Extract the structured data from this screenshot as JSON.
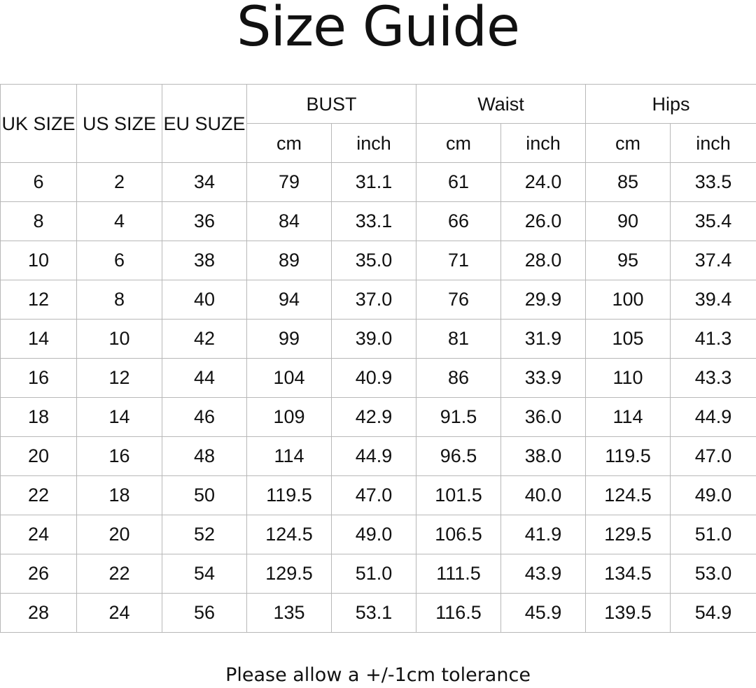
{
  "title": "Size Guide",
  "table": {
    "headers": {
      "uk": "UK SIZE",
      "us": "US SIZE",
      "eu": "EU SUZE",
      "bust": "BUST",
      "waist": "Waist",
      "hips": "Hips",
      "units": [
        "cm",
        "inch",
        "cm",
        "inch",
        "cm",
        "inch"
      ]
    },
    "rows": [
      [
        "6",
        "2",
        "34",
        "79",
        "31.1",
        "61",
        "24.0",
        "85",
        "33.5"
      ],
      [
        "8",
        "4",
        "36",
        "84",
        "33.1",
        "66",
        "26.0",
        "90",
        "35.4"
      ],
      [
        "10",
        "6",
        "38",
        "89",
        "35.0",
        "71",
        "28.0",
        "95",
        "37.4"
      ],
      [
        "12",
        "8",
        "40",
        "94",
        "37.0",
        "76",
        "29.9",
        "100",
        "39.4"
      ],
      [
        "14",
        "10",
        "42",
        "99",
        "39.0",
        "81",
        "31.9",
        "105",
        "41.3"
      ],
      [
        "16",
        "12",
        "44",
        "104",
        "40.9",
        "86",
        "33.9",
        "110",
        "43.3"
      ],
      [
        "18",
        "14",
        "46",
        "109",
        "42.9",
        "91.5",
        "36.0",
        "114",
        "44.9"
      ],
      [
        "20",
        "16",
        "48",
        "114",
        "44.9",
        "96.5",
        "38.0",
        "119.5",
        "47.0"
      ],
      [
        "22",
        "18",
        "50",
        "119.5",
        "47.0",
        "101.5",
        "40.0",
        "124.5",
        "49.0"
      ],
      [
        "24",
        "20",
        "52",
        "124.5",
        "49.0",
        "106.5",
        "41.9",
        "129.5",
        "51.0"
      ],
      [
        "26",
        "22",
        "54",
        "129.5",
        "51.0",
        "111.5",
        "43.9",
        "134.5",
        "53.0"
      ],
      [
        "28",
        "24",
        "56",
        "135",
        "53.1",
        "116.5",
        "45.9",
        "139.5",
        "54.9"
      ]
    ]
  },
  "footer": "Please allow a +/-1cm tolerance"
}
